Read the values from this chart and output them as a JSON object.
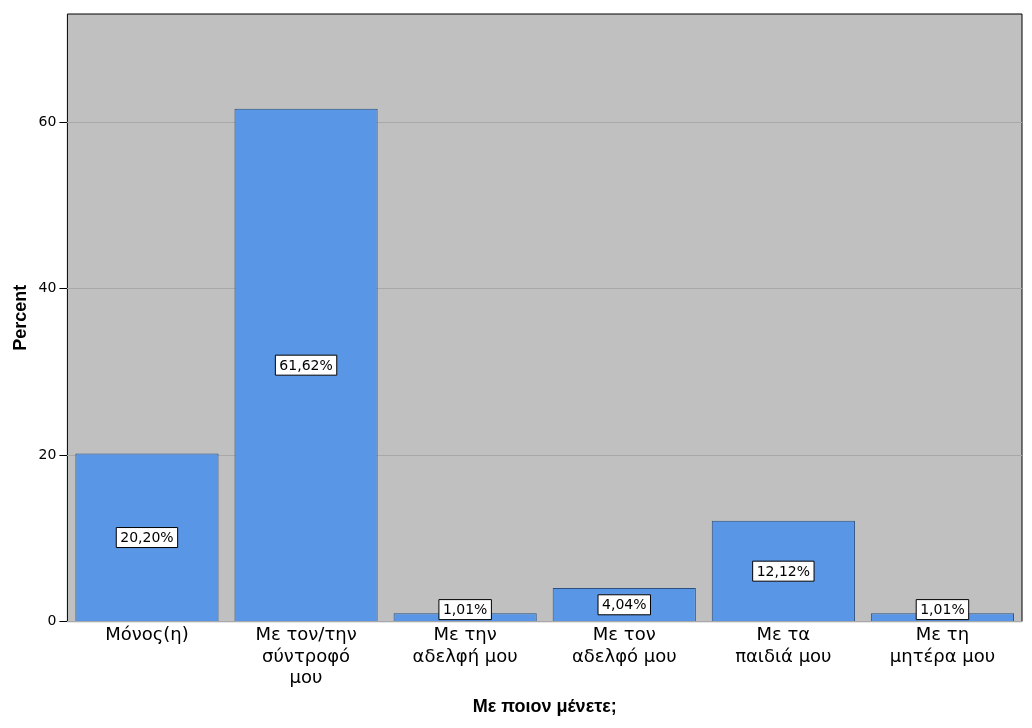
{
  "chart_data": {
    "type": "bar",
    "xlabel": "Με ποιον μένετε;",
    "ylabel": "Percent",
    "categories": [
      "Μόνος(η)",
      "Με τον/την σύντροφό μου",
      "Με την αδελφή μου",
      "Με τον αδελφό μου",
      "Με τα παιδιά μου",
      "Με τη μητέρα μου"
    ],
    "values": [
      20.2,
      61.62,
      1.01,
      4.04,
      12.12,
      1.01
    ],
    "value_labels": [
      "20,20%",
      "61,62%",
      "1,01%",
      "4,04%",
      "12,12%",
      "1,01%"
    ],
    "color": "#5a96e6",
    "ylim": [
      0,
      73
    ],
    "yticks": [
      0,
      20,
      40,
      60
    ],
    "grid": "y",
    "legend": false
  }
}
